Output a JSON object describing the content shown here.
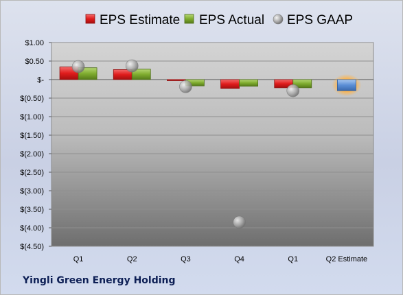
{
  "company_name": "Yingli Green Energy Holding",
  "chart_data": {
    "type": "bar",
    "categories": [
      "Q1",
      "Q2",
      "Q3",
      "Q4",
      "Q1",
      "Q2 Estimate"
    ],
    "ylim": [
      -4.5,
      1.0
    ],
    "yticks": [
      1.0,
      0.5,
      0.0,
      -0.5,
      -1.0,
      -1.5,
      -2.0,
      -2.5,
      -3.0,
      -3.5,
      -4.0,
      -4.5
    ],
    "ytick_labels": [
      "$1.00",
      "$0.50",
      "$-",
      "$(0.50)",
      "$(1.00)",
      "$(1.50)",
      "$(2.00)",
      "$(2.50)",
      "$(3.00)",
      "$(3.50)",
      "$(4.00)",
      "$(4.50)"
    ],
    "grid": true,
    "legend_position": "top",
    "series": [
      {
        "name": "EPS Estimate",
        "kind": "bar",
        "color": "#e01c1c",
        "values": [
          0.34,
          0.27,
          -0.01,
          -0.24,
          -0.22,
          -0.3
        ]
      },
      {
        "name": "EPS Actual",
        "kind": "bar",
        "color": "#7fac2f",
        "values": [
          0.32,
          0.28,
          -0.17,
          -0.18,
          -0.22,
          null
        ]
      },
      {
        "name": "EPS GAAP",
        "kind": "point",
        "color": "#a8a8a8",
        "values": [
          0.35,
          0.37,
          -0.19,
          -3.85,
          -0.3,
          null
        ]
      }
    ],
    "estimate_highlight_color": "#5b8fd6"
  }
}
